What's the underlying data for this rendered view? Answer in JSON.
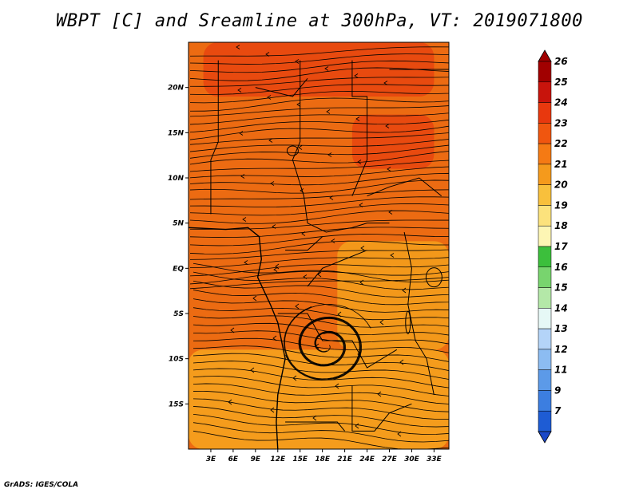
{
  "title": "WBPT [C] and Sreamline at 300hPa, VT: 2019071800",
  "footer": "GrADS: IGES/COLA",
  "map": {
    "lon_range": [
      0,
      35
    ],
    "lat_range": [
      -20,
      25
    ],
    "lon_ticks": [
      {
        "value": 3,
        "label": "3E"
      },
      {
        "value": 6,
        "label": "6E"
      },
      {
        "value": 9,
        "label": "9E"
      },
      {
        "value": 12,
        "label": "12E"
      },
      {
        "value": 15,
        "label": "15E"
      },
      {
        "value": 18,
        "label": "18E"
      },
      {
        "value": 21,
        "label": "21E"
      },
      {
        "value": 24,
        "label": "24E"
      },
      {
        "value": 27,
        "label": "27E"
      },
      {
        "value": 30,
        "label": "30E"
      },
      {
        "value": 33,
        "label": "33E"
      }
    ],
    "lat_ticks": [
      {
        "value": 20,
        "label": "20N"
      },
      {
        "value": 15,
        "label": "15N"
      },
      {
        "value": 10,
        "label": "10N"
      },
      {
        "value": 5,
        "label": "5N"
      },
      {
        "value": 0,
        "label": "EQ"
      },
      {
        "value": -5,
        "label": "5S"
      },
      {
        "value": -10,
        "label": "10S"
      },
      {
        "value": -15,
        "label": "15S"
      }
    ],
    "vortex_center": {
      "lon": 18.5,
      "lat": -8.5
    },
    "field_regions": [
      {
        "name": "hot-north-band",
        "color": "#e8440f",
        "lon": [
          2,
          33
        ],
        "lat": [
          19,
          25
        ]
      },
      {
        "name": "hot-northeast-patch",
        "color": "#e8440f",
        "lon": [
          22,
          33
        ],
        "lat": [
          11,
          17
        ]
      },
      {
        "name": "warm-southeast",
        "color": "#f5a01c",
        "lon": [
          20,
          35
        ],
        "lat": [
          -9,
          3
        ]
      },
      {
        "name": "cool-south",
        "color": "#f7a51e",
        "lon": [
          0,
          35
        ],
        "lat": [
          -20,
          -9
        ]
      }
    ]
  },
  "colorbar": {
    "levels": [
      {
        "label": "26",
        "color": "#a10000"
      },
      {
        "label": "25",
        "color": "#c8140c"
      },
      {
        "label": "24",
        "color": "#e8380e"
      },
      {
        "label": "23",
        "color": "#f0560f"
      },
      {
        "label": "22",
        "color": "#f57a14"
      },
      {
        "label": "21",
        "color": "#f59a1c"
      },
      {
        "label": "20",
        "color": "#f8c03c"
      },
      {
        "label": "19",
        "color": "#fce27c"
      },
      {
        "label": "18",
        "color": "#fdf6b4"
      },
      {
        "label": "17",
        "color": "#3cbf3c"
      },
      {
        "label": "16",
        "color": "#78d46e"
      },
      {
        "label": "15",
        "color": "#b4e8a8"
      },
      {
        "label": "14",
        "color": "#e6f8f6"
      },
      {
        "label": "13",
        "color": "#b4d4f8"
      },
      {
        "label": "12",
        "color": "#8cbcf2"
      },
      {
        "label": "11",
        "color": "#5c9ae8"
      },
      {
        "label": "9",
        "color": "#3c7ee0"
      },
      {
        "label": "7",
        "color": "#1e5cd4"
      }
    ],
    "low_end_color": "#1a48c8"
  }
}
